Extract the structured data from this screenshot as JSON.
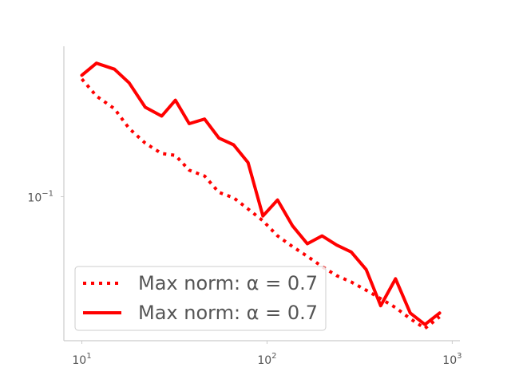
{
  "chart_data": {
    "type": "line",
    "xscale": "log",
    "yscale": "log",
    "xlim": [
      8.0,
      1100
    ],
    "ylim": [
      0.0515,
      0.2
    ],
    "grid": false,
    "legend_placement": "lower-left",
    "x_ticks": [
      {
        "base": "10",
        "exp": "1",
        "value": 10
      },
      {
        "base": "10",
        "exp": "2",
        "value": 100
      },
      {
        "base": "10",
        "exp": "3",
        "value": 1000
      }
    ],
    "y_ticks": [
      {
        "base": "10",
        "exp": "−1",
        "value": 0.1
      }
    ],
    "series": [
      {
        "name": "Max norm: α = 0.7",
        "style": "dotted",
        "color": "#ff0000",
        "x": [
          10,
          12,
          15,
          18,
          22,
          27,
          32,
          38,
          46,
          55,
          66,
          79,
          95,
          114,
          137,
          165,
          198,
          238,
          285,
          343,
          411,
          494,
          593,
          712,
          855
        ],
        "y": [
          0.172,
          0.159,
          0.15,
          0.137,
          0.128,
          0.122,
          0.121,
          0.113,
          0.11,
          0.102,
          0.0995,
          0.0945,
          0.0895,
          0.0835,
          0.0795,
          0.076,
          0.0725,
          0.0695,
          0.0675,
          0.065,
          0.0625,
          0.06,
          0.057,
          0.0545,
          0.0575
        ]
      },
      {
        "name": "Max norm: α = 0.7",
        "style": "solid",
        "color": "#ff0000",
        "x": [
          10,
          12,
          15,
          18,
          22,
          27,
          32,
          38,
          46,
          55,
          66,
          79,
          95,
          114,
          137,
          165,
          198,
          238,
          285,
          343,
          411,
          494,
          593,
          712,
          855
        ],
        "y": [
          0.175,
          0.185,
          0.18,
          0.169,
          0.151,
          0.145,
          0.156,
          0.14,
          0.143,
          0.131,
          0.127,
          0.117,
          0.0915,
          0.0985,
          0.0875,
          0.0805,
          0.0835,
          0.08,
          0.0775,
          0.0715,
          0.0605,
          0.0685,
          0.0585,
          0.0555,
          0.0585
        ]
      }
    ]
  }
}
